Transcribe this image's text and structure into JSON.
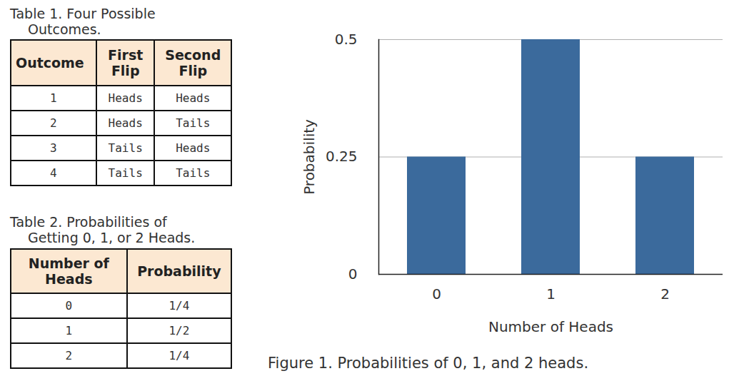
{
  "tables": [
    {
      "title": "Table 1. Four Possible Outcomes.",
      "columns": [
        "Outcome",
        "First Flip",
        "Second Flip"
      ],
      "rows": [
        [
          "1",
          "Heads",
          "Heads"
        ],
        [
          "2",
          "Heads",
          "Tails"
        ],
        [
          "3",
          "Tails",
          "Heads"
        ],
        [
          "4",
          "Tails",
          "Tails"
        ]
      ]
    },
    {
      "title": "Table 2. Probabilities of Getting 0, 1, or 2 Heads.",
      "columns": [
        "Number of Heads",
        "Probability"
      ],
      "rows": [
        [
          "0",
          "1/4"
        ],
        [
          "1",
          "1/2"
        ],
        [
          "2",
          "1/4"
        ]
      ]
    }
  ],
  "chart_data": {
    "type": "bar",
    "title": "Figure 1. Probabilities of 0, 1, and 2 heads.",
    "categories": [
      "0",
      "1",
      "2"
    ],
    "values": [
      0.25,
      0.5,
      0.25
    ],
    "color": "#3b6a9c",
    "xlabel": "Number of Heads",
    "ylabel": "Probability",
    "ylim": [
      0,
      0.5
    ],
    "yticks": [
      0,
      0.25,
      0.5
    ],
    "grid": true
  }
}
